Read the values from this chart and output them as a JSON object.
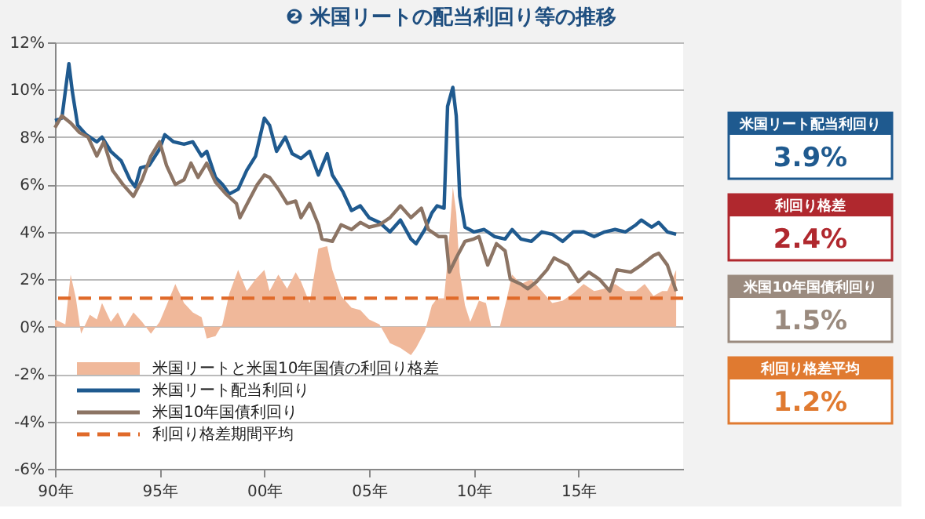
{
  "chart_data": {
    "type": "line",
    "title": "❷ 米国リートの配当利回り等の推移",
    "xlim": [
      "1990",
      "2020"
    ],
    "xticks": [
      {
        "value": "1990",
        "label": "90年"
      },
      {
        "value": "1995",
        "label": "95年"
      },
      {
        "value": "2000",
        "label": "00年"
      },
      {
        "value": "2005",
        "label": "05年"
      },
      {
        "value": "2010",
        "label": "10年"
      },
      {
        "value": "2015",
        "label": "15年"
      }
    ],
    "ylim": [
      -6,
      12
    ],
    "yticks": [
      {
        "value": -6,
        "label": "-6%"
      },
      {
        "value": -4,
        "label": "-4%"
      },
      {
        "value": -2,
        "label": "-2%"
      },
      {
        "value": 0,
        "label": "0%"
      },
      {
        "value": 2,
        "label": "2%"
      },
      {
        "value": 4,
        "label": "4%"
      },
      {
        "value": 6,
        "label": "6%"
      },
      {
        "value": 8,
        "label": "8%"
      },
      {
        "value": 10,
        "label": "10%"
      },
      {
        "value": 12,
        "label": "12%"
      }
    ],
    "grid": "y",
    "legend": "bottom left",
    "series": [
      {
        "name": "米国リートと米国10年国債の利回り格差",
        "type": "area",
        "color": "#f0b89a",
        "x": [
          "1990-01",
          "1990-07",
          "1990-10",
          "1991-01",
          "1991-04",
          "1991-09",
          "1992-01",
          "1992-04",
          "1992-09",
          "1993-01",
          "1993-05",
          "1993-10",
          "1994-03",
          "1994-08",
          "1995-01",
          "1995-05",
          "1995-10",
          "1996-03",
          "1996-08",
          "1997-01",
          "1997-04",
          "1997-09",
          "1998-01",
          "1998-05",
          "1998-10",
          "1999-03",
          "1999-08",
          "2000-01",
          "2000-04",
          "2000-09",
          "2001-02",
          "2001-07",
          "2001-10",
          "2002-03",
          "2002-08",
          "2003-01",
          "2003-04",
          "2003-09",
          "2004-03",
          "2004-08",
          "2005-01",
          "2005-07",
          "2006-01",
          "2006-07",
          "2007-01",
          "2007-04",
          "2007-09",
          "2008-01",
          "2008-04",
          "2008-08",
          "2008-10",
          "2009-01",
          "2009-03",
          "2009-05",
          "2009-08",
          "2009-11",
          "2010-04",
          "2010-08",
          "2010-11",
          "2011-04",
          "2011-08",
          "2011-11",
          "2012-04",
          "2012-10",
          "2013-04",
          "2013-10",
          "2014-04",
          "2014-10",
          "2015-04",
          "2015-10",
          "2016-04",
          "2016-10",
          "2017-04",
          "2017-10",
          "2018-03",
          "2018-08",
          "2019-01",
          "2019-04",
          "2019-09"
        ],
        "values": [
          0.3,
          0.1,
          2.2,
          1.2,
          -0.3,
          0.5,
          0.3,
          1.0,
          0.2,
          0.6,
          0.0,
          0.6,
          0.2,
          -0.3,
          0.2,
          0.9,
          1.8,
          1.0,
          0.6,
          0.4,
          -0.5,
          -0.4,
          0.1,
          1.4,
          2.4,
          1.5,
          2.0,
          2.4,
          1.5,
          2.2,
          1.6,
          2.3,
          1.9,
          1.0,
          3.3,
          3.4,
          2.4,
          1.3,
          0.8,
          0.7,
          0.3,
          0.1,
          -0.7,
          -0.9,
          -1.2,
          -0.9,
          -0.2,
          0.9,
          1.2,
          1.2,
          2.8,
          5.9,
          4.8,
          2.3,
          0.9,
          0.2,
          1.1,
          1.0,
          0.0,
          0.0,
          1.2,
          2.2,
          1.8,
          2.0,
          1.5,
          1.0,
          1.1,
          1.4,
          1.8,
          1.5,
          1.6,
          1.8,
          1.5,
          1.5,
          1.8,
          1.3,
          1.5,
          1.5,
          2.4
        ]
      },
      {
        "name": "米国リート配当利回り",
        "color": "#1f5a8f",
        "x": [
          "1990-01",
          "1990-05",
          "1990-09",
          "1990-11",
          "1991-02",
          "1991-07",
          "1992-01",
          "1992-04",
          "1992-09",
          "1993-03",
          "1993-08",
          "1993-11",
          "1994-02",
          "1994-07",
          "1995-01",
          "1995-04",
          "1995-09",
          "1996-03",
          "1996-08",
          "1997-01",
          "1997-04",
          "1997-09",
          "1998-01",
          "1998-05",
          "1998-10",
          "1999-03",
          "1999-08",
          "2000-01",
          "2000-04",
          "2000-08",
          "2001-01",
          "2001-05",
          "2001-10",
          "2002-03",
          "2002-08",
          "2003-01",
          "2003-04",
          "2003-10",
          "2004-03",
          "2004-08",
          "2005-01",
          "2005-07",
          "2006-01",
          "2006-07",
          "2007-01",
          "2007-04",
          "2007-09",
          "2008-01",
          "2008-04",
          "2008-08",
          "2008-10",
          "2009-01",
          "2009-03",
          "2009-05",
          "2009-08",
          "2010-01",
          "2010-07",
          "2011-01",
          "2011-07",
          "2011-11",
          "2012-04",
          "2012-10",
          "2013-04",
          "2013-10",
          "2014-04",
          "2014-10",
          "2015-04",
          "2015-10",
          "2016-04",
          "2016-10",
          "2017-04",
          "2017-10",
          "2018-01",
          "2018-07",
          "2018-11",
          "2019-04",
          "2019-09"
        ],
        "values": [
          8.7,
          8.8,
          11.1,
          9.9,
          8.5,
          8.1,
          7.8,
          8.0,
          7.4,
          7.0,
          6.2,
          5.9,
          6.7,
          6.8,
          7.5,
          8.1,
          7.8,
          7.7,
          7.8,
          7.2,
          7.4,
          6.3,
          6.0,
          5.6,
          5.8,
          6.6,
          7.2,
          8.8,
          8.5,
          7.4,
          8.0,
          7.3,
          7.1,
          7.4,
          6.4,
          7.3,
          6.4,
          5.7,
          4.9,
          5.1,
          4.6,
          4.4,
          4.0,
          4.5,
          3.7,
          3.5,
          4.1,
          4.8,
          5.1,
          5.0,
          9.3,
          10.1,
          8.9,
          5.5,
          4.2,
          4.0,
          4.1,
          3.8,
          3.7,
          4.1,
          3.7,
          3.6,
          4.0,
          3.9,
          3.6,
          4.0,
          4.0,
          3.8,
          4.0,
          4.1,
          4.0,
          4.3,
          4.5,
          4.2,
          4.4,
          4.0,
          3.9
        ]
      },
      {
        "name": "米国10年国債利回り",
        "color": "#8c7464",
        "x": [
          "1990-01",
          "1990-05",
          "1990-10",
          "1991-03",
          "1991-08",
          "1992-01",
          "1992-05",
          "1992-10",
          "1993-04",
          "1993-10",
          "1994-03",
          "1994-08",
          "1995-01",
          "1995-05",
          "1995-10",
          "1996-03",
          "1996-07",
          "1996-11",
          "1997-04",
          "1997-09",
          "1998-03",
          "1998-09",
          "1998-11",
          "1999-04",
          "1999-09",
          "2000-01",
          "2000-04",
          "2000-09",
          "2001-02",
          "2001-07",
          "2001-10",
          "2002-03",
          "2002-08",
          "2002-10",
          "2003-04",
          "2003-09",
          "2004-03",
          "2004-08",
          "2005-01",
          "2005-07",
          "2006-01",
          "2006-07",
          "2007-01",
          "2007-07",
          "2007-11",
          "2008-05",
          "2008-09",
          "2008-11",
          "2009-03",
          "2009-08",
          "2010-01",
          "2010-04",
          "2010-09",
          "2011-02",
          "2011-07",
          "2011-10",
          "2012-04",
          "2012-08",
          "2013-01",
          "2013-07",
          "2013-11",
          "2014-07",
          "2015-01",
          "2015-07",
          "2016-01",
          "2016-07",
          "2016-11",
          "2017-07",
          "2018-01",
          "2018-08",
          "2018-11",
          "2019-04",
          "2019-09"
        ],
        "values": [
          8.4,
          8.9,
          8.6,
          8.2,
          8.0,
          7.2,
          7.8,
          6.6,
          6.0,
          5.5,
          6.2,
          7.2,
          7.8,
          6.8,
          6.0,
          6.2,
          6.9,
          6.3,
          6.9,
          6.1,
          5.6,
          5.2,
          4.6,
          5.3,
          6.0,
          6.4,
          6.3,
          5.8,
          5.2,
          5.3,
          4.6,
          5.2,
          4.3,
          3.7,
          3.6,
          4.3,
          4.1,
          4.4,
          4.2,
          4.3,
          4.6,
          5.1,
          4.6,
          5.0,
          4.1,
          3.8,
          3.8,
          2.3,
          2.9,
          3.6,
          3.7,
          3.8,
          2.6,
          3.5,
          3.2,
          2.0,
          1.8,
          1.6,
          1.9,
          2.4,
          2.9,
          2.6,
          1.9,
          2.3,
          2.0,
          1.5,
          2.4,
          2.3,
          2.6,
          3.0,
          3.1,
          2.6,
          1.5
        ]
      }
    ],
    "ref_lines": [
      {
        "axis": "y",
        "value": 1.2,
        "label": "利回り格差期間平均",
        "color": "#e06a2a",
        "line_style": "dashed"
      }
    ],
    "annotations": [
      "米国リート配当利回り",
      "3.9%",
      "利回り格差",
      "2.4%",
      "米国10年国債利回り",
      "1.5%",
      "利回り格差平均",
      "1.2%"
    ]
  }
}
